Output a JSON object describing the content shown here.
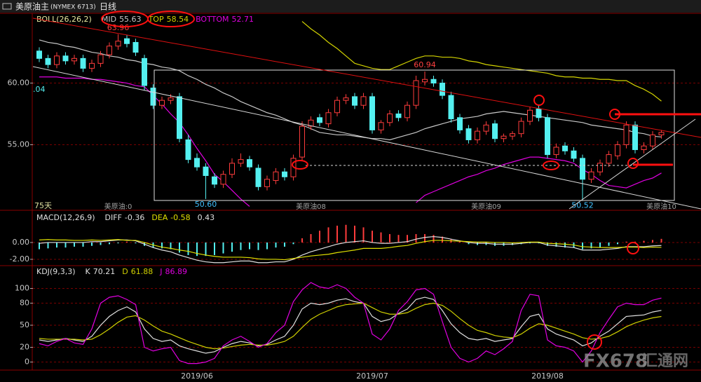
{
  "header": {
    "title": "美原油主",
    "code": "(NYMEX 6713)",
    "period": "日线"
  },
  "watermark": {
    "brand": "FX678",
    "site": "汇通网"
  },
  "chart_data": [
    {
      "type": "candlestick",
      "indicator": "BOLL(26,26,2)",
      "up_color": "#ff3c3c",
      "down_color": "#54f0f0",
      "open": [
        62.6,
        62.0,
        61.5,
        62.2,
        61.8,
        62.0,
        61.2,
        61.6,
        62.3,
        63.0,
        63.6,
        63.3,
        62.0,
        59.6,
        58.2,
        58.6,
        58.9,
        55.4,
        53.9,
        53.2,
        52.4,
        51.8,
        52.6,
        53.5,
        53.8,
        53.1,
        51.6,
        52.1,
        52.8,
        52.4,
        54.0,
        56.5,
        57.2,
        56.7,
        57.6,
        58.6,
        58.9,
        58.2,
        58.9,
        56.2,
        56.8,
        57.5,
        57.2,
        58.2,
        60.1,
        60.3,
        60.0,
        59.0,
        57.2,
        56.3,
        55.4,
        56.1,
        56.7,
        55.5,
        55.7,
        55.9,
        56.9,
        57.9,
        57.2,
        54.2,
        54.9,
        54.5,
        53.9,
        52.2,
        52.8,
        53.5,
        54.1,
        55.0,
        56.6,
        54.6,
        54.9,
        55.8
      ],
      "high": [
        62.9,
        62.3,
        62.5,
        62.5,
        62.3,
        62.3,
        61.9,
        62.6,
        63.3,
        63.96,
        63.9,
        63.6,
        62.3,
        59.9,
        58.9,
        59.1,
        59.2,
        55.8,
        54.3,
        53.5,
        52.7,
        52.9,
        53.9,
        54.3,
        54.1,
        53.4,
        52.5,
        53.1,
        53.1,
        54.2,
        56.9,
        57.3,
        57.5,
        57.9,
        58.9,
        59.1,
        59.2,
        59.2,
        59.2,
        57.0,
        57.8,
        57.8,
        58.5,
        60.6,
        60.94,
        60.6,
        60.3,
        59.3,
        57.5,
        56.6,
        56.4,
        56.9,
        57.0,
        55.9,
        56.1,
        57.2,
        58.1,
        58.2,
        57.5,
        55.1,
        55.2,
        54.8,
        54.2,
        53.1,
        53.8,
        54.5,
        55.3,
        56.9,
        56.9,
        55.2,
        56.1,
        56.2
      ],
      "low": [
        61.7,
        61.2,
        61.2,
        61.5,
        61.5,
        60.9,
        60.9,
        61.3,
        62.0,
        62.7,
        62.9,
        62.2,
        59.4,
        57.9,
        57.9,
        58.3,
        55.2,
        53.5,
        52.9,
        50.6,
        51.5,
        51.5,
        52.3,
        53.2,
        52.9,
        51.3,
        51.3,
        51.8,
        52.1,
        52.1,
        53.7,
        56.2,
        56.5,
        56.4,
        57.3,
        58.3,
        57.9,
        57.9,
        55.9,
        55.9,
        56.5,
        56.9,
        56.9,
        57.9,
        59.8,
        59.7,
        58.7,
        56.8,
        55.9,
        55.1,
        55.1,
        55.8,
        55.2,
        55.2,
        55.4,
        55.6,
        56.6,
        56.9,
        53.9,
        53.9,
        54.2,
        53.6,
        50.52,
        51.9,
        52.5,
        53.2,
        53.8,
        54.7,
        54.3,
        54.3,
        54.6,
        55.5
      ],
      "close": [
        62.0,
        61.5,
        62.2,
        61.8,
        62.0,
        61.2,
        61.6,
        62.3,
        63.0,
        63.4,
        63.2,
        62.5,
        59.8,
        58.2,
        58.6,
        58.8,
        55.5,
        53.8,
        53.2,
        52.5,
        51.8,
        52.6,
        53.5,
        53.8,
        53.2,
        51.6,
        52.2,
        52.8,
        52.4,
        53.9,
        56.5,
        57.0,
        56.8,
        57.6,
        58.6,
        58.8,
        58.2,
        58.9,
        56.2,
        56.8,
        57.5,
        57.2,
        58.2,
        60.2,
        60.3,
        60.0,
        59.0,
        57.1,
        56.2,
        55.4,
        56.1,
        56.6,
        55.5,
        55.7,
        55.9,
        56.9,
        57.8,
        57.2,
        54.2,
        54.8,
        54.5,
        53.9,
        52.2,
        52.8,
        53.5,
        54.2,
        55.0,
        56.6,
        54.6,
        54.9,
        55.8,
        56.0
      ],
      "series": [
        {
          "name": "MID",
          "color": "#c8c8c8",
          "values": [
            63.5,
            63.3,
            63.2,
            63.0,
            62.9,
            62.7,
            62.5,
            62.4,
            62.2,
            62.1,
            61.9,
            61.8,
            61.6,
            61.5,
            61.3,
            61.2,
            61.0,
            60.6,
            60.3,
            59.9,
            59.6,
            59.2,
            58.9,
            58.5,
            58.2,
            57.9,
            57.6,
            57.4,
            57.1,
            56.8,
            56.6,
            56.3,
            56.0,
            55.9,
            55.8,
            55.8,
            55.7,
            55.6,
            55.5,
            55.5,
            55.4,
            55.6,
            55.8,
            56.0,
            56.3,
            56.5,
            56.7,
            56.9,
            57.1,
            57.2,
            57.3,
            57.5,
            57.6,
            57.7,
            57.6,
            57.5,
            57.4,
            57.3,
            57.2,
            57.1,
            57.0,
            56.9,
            56.8,
            56.6,
            56.5,
            56.4,
            56.3,
            56.2,
            56.0,
            55.9,
            55.7,
            55.63
          ]
        },
        {
          "name": "TOP",
          "color": "#d2d200",
          "values": [
            null,
            null,
            null,
            null,
            null,
            null,
            null,
            null,
            null,
            null,
            null,
            null,
            null,
            null,
            null,
            null,
            null,
            null,
            null,
            null,
            null,
            null,
            null,
            null,
            null,
            null,
            null,
            null,
            null,
            null,
            65.0,
            64.4,
            63.9,
            63.3,
            62.8,
            62.2,
            61.6,
            61.4,
            61.2,
            61.1,
            61.1,
            61.4,
            61.7,
            62.0,
            62.2,
            62.2,
            62.1,
            62.1,
            62.0,
            61.8,
            61.7,
            61.5,
            61.4,
            61.3,
            61.2,
            61.1,
            61.0,
            60.9,
            60.8,
            60.6,
            60.5,
            60.5,
            60.4,
            60.4,
            60.3,
            60.3,
            60.2,
            60.2,
            59.8,
            59.5,
            59.1,
            58.54
          ]
        },
        {
          "name": "BOTTOM",
          "color": "#e000e0",
          "values": [
            60.5,
            60.5,
            60.5,
            60.4,
            60.4,
            60.4,
            60.3,
            60.3,
            60.2,
            60.1,
            60.0,
            59.8,
            59.7,
            59.0,
            58.3,
            57.5,
            56.8,
            55.8,
            54.7,
            53.7,
            52.6,
            52.0,
            51.3,
            50.6,
            50.0,
            null,
            null,
            null,
            null,
            null,
            null,
            null,
            null,
            null,
            null,
            null,
            null,
            null,
            null,
            null,
            null,
            null,
            null,
            50.3,
            50.9,
            51.2,
            51.5,
            51.8,
            52.1,
            52.4,
            52.6,
            52.9,
            53.1,
            53.4,
            53.6,
            53.8,
            54.0,
            54.0,
            53.9,
            53.8,
            53.7,
            53.5,
            53.0,
            52.6,
            52.1,
            51.7,
            51.6,
            51.5,
            51.8,
            52.1,
            52.3,
            52.71
          ]
        }
      ],
      "ylim": [
        49.8,
        65.6
      ],
      "yticks": [
        {
          "value": 55,
          "label": "55.00"
        },
        {
          "value": 60,
          "label": "60.00"
        }
      ],
      "grid": true,
      "annotations": [
        {
          "label": "63.96",
          "value": 63.96
        },
        {
          "label": "60.94",
          "value": 60.94
        },
        {
          "label": "50.60",
          "value": 50.6
        },
        {
          "label": "50.52",
          "value": 50.52
        }
      ],
      "period_labels": [
        null,
        null,
        null,
        null,
        null,
        null,
        null,
        null,
        null,
        "美原油:0",
        null,
        null,
        null,
        null,
        null,
        null,
        null,
        null,
        null,
        null,
        null,
        null,
        null,
        null,
        null,
        null,
        null,
        null,
        null,
        null,
        null,
        "美原油08",
        null,
        null,
        null,
        null,
        null,
        null,
        null,
        null,
        null,
        null,
        null,
        null,
        null,
        null,
        null,
        null,
        null,
        null,
        null,
        "美原油09",
        null,
        null,
        null,
        null,
        null,
        null,
        null,
        null,
        null,
        null,
        null,
        null,
        null,
        null,
        null,
        null,
        null,
        null,
        null,
        "美原油10"
      ],
      "corner_label": "75天",
      "edge_label": ".04"
    },
    {
      "type": "bar",
      "indicator": "MACD(12,26,9)",
      "up_color": "#ff3c3c",
      "down_color": "#54f0f0",
      "values": [
        -0.8,
        -0.7,
        -0.6,
        -0.6,
        -0.5,
        -0.5,
        -0.4,
        -0.3,
        -0.2,
        -0.1,
        0.1,
        -0.1,
        -0.4,
        -0.6,
        -0.7,
        -0.8,
        -1.2,
        -1.5,
        -1.6,
        -1.6,
        -1.5,
        -1.3,
        -1.1,
        -0.9,
        -0.8,
        -0.9,
        -0.8,
        -0.6,
        -0.5,
        -0.2,
        0.5,
        1.0,
        1.4,
        1.8,
        2.0,
        2.1,
        2.0,
        1.8,
        1.4,
        1.2,
        1.0,
        0.9,
        0.9,
        1.0,
        1.0,
        0.9,
        0.7,
        0.4,
        0.1,
        -0.2,
        -0.3,
        -0.3,
        -0.4,
        -0.4,
        -0.3,
        -0.2,
        -0.1,
        -0.1,
        -0.4,
        -0.5,
        -0.6,
        -0.6,
        -0.8,
        -0.7,
        -0.6,
        -0.4,
        -0.2,
        0.1,
        0.1,
        0.2,
        0.3,
        0.43
      ],
      "series": [
        {
          "name": "DIFF",
          "color": "#e0e0e0",
          "values": [
            -0.1,
            0.0,
            0.0,
            0.0,
            0.0,
            0.0,
            0.1,
            0.1,
            0.2,
            0.3,
            0.3,
            0.2,
            -0.2,
            -0.6,
            -0.9,
            -1.1,
            -1.5,
            -1.8,
            -2.1,
            -2.3,
            -2.4,
            -2.4,
            -2.3,
            -2.2,
            -2.2,
            -2.4,
            -2.4,
            -2.3,
            -2.3,
            -2.0,
            -1.5,
            -1.1,
            -0.8,
            -0.5,
            -0.2,
            0.0,
            0.1,
            0.2,
            0.0,
            -0.1,
            -0.1,
            0.0,
            0.1,
            0.4,
            0.6,
            0.7,
            0.6,
            0.4,
            0.2,
            0.0,
            -0.1,
            -0.1,
            -0.2,
            -0.2,
            -0.2,
            -0.1,
            0.0,
            0.0,
            -0.3,
            -0.4,
            -0.5,
            -0.6,
            -0.9,
            -0.9,
            -0.9,
            -0.8,
            -0.7,
            -0.5,
            -0.5,
            -0.5,
            -0.4,
            -0.36
          ]
        },
        {
          "name": "DEA",
          "color": "#e0e000",
          "values": [
            0.3,
            0.35,
            0.3,
            0.3,
            0.25,
            0.25,
            0.3,
            0.25,
            0.3,
            0.35,
            0.25,
            0.25,
            0.0,
            -0.3,
            -0.55,
            -0.7,
            -0.9,
            -1.05,
            -1.3,
            -1.5,
            -1.65,
            -1.75,
            -1.75,
            -1.75,
            -1.8,
            -1.95,
            -2.0,
            -2.0,
            -2.05,
            -1.9,
            -1.75,
            -1.6,
            -1.5,
            -1.4,
            -1.2,
            -1.05,
            -0.9,
            -0.7,
            -0.7,
            -0.7,
            -0.6,
            -0.45,
            -0.35,
            -0.1,
            0.1,
            0.25,
            0.25,
            0.2,
            0.15,
            0.1,
            0.05,
            0.05,
            0.0,
            0.0,
            -0.05,
            0.0,
            0.05,
            0.05,
            -0.1,
            -0.15,
            -0.2,
            -0.3,
            -0.5,
            -0.55,
            -0.6,
            -0.6,
            -0.6,
            -0.55,
            -0.55,
            -0.6,
            -0.55,
            -0.58
          ]
        }
      ],
      "ylim": [
        -2.67,
        3.58
      ],
      "yticks": [
        {
          "value": 0,
          "label": "0.00"
        },
        {
          "value": -2,
          "label": "-2.00"
        }
      ],
      "grid": true
    },
    {
      "type": "line",
      "indicator": "KDJ(9,3,3)",
      "categories": [
        null,
        null,
        null,
        null,
        null,
        null,
        null,
        null,
        null,
        null,
        null,
        null,
        null,
        null,
        null,
        null,
        null,
        null,
        "2019/06",
        null,
        null,
        null,
        null,
        null,
        null,
        null,
        null,
        null,
        null,
        null,
        null,
        null,
        null,
        null,
        null,
        null,
        null,
        null,
        "2019/07",
        null,
        null,
        null,
        null,
        null,
        null,
        null,
        null,
        null,
        null,
        null,
        null,
        null,
        null,
        null,
        null,
        null,
        null,
        null,
        "2019/08",
        null,
        null,
        null,
        null,
        null,
        null,
        null,
        null,
        null,
        null,
        null,
        null,
        null
      ],
      "series": [
        {
          "name": "K",
          "color": "#e0e0e0",
          "values": [
            30,
            28,
            30,
            32,
            30,
            28,
            35,
            50,
            62,
            70,
            75,
            68,
            45,
            32,
            28,
            30,
            22,
            18,
            15,
            12,
            14,
            20,
            25,
            28,
            26,
            22,
            24,
            30,
            35,
            50,
            72,
            80,
            78,
            80,
            84,
            86,
            82,
            80,
            62,
            55,
            58,
            66,
            72,
            85,
            88,
            85,
            70,
            52,
            40,
            32,
            30,
            32,
            28,
            30,
            32,
            48,
            62,
            65,
            45,
            38,
            34,
            30,
            22,
            26,
            35,
            42,
            52,
            62,
            63,
            64,
            68,
            70.21
          ]
        },
        {
          "name": "D",
          "color": "#d0d000",
          "values": [
            32,
            31,
            31,
            31,
            31,
            30,
            31,
            37,
            45,
            54,
            61,
            63,
            57,
            49,
            42,
            38,
            33,
            28,
            24,
            20,
            18,
            19,
            21,
            23,
            24,
            23,
            23,
            25,
            28,
            35,
            47,
            58,
            65,
            70,
            75,
            78,
            79,
            80,
            74,
            68,
            65,
            65,
            67,
            73,
            78,
            80,
            77,
            69,
            59,
            50,
            43,
            40,
            36,
            34,
            33,
            38,
            46,
            52,
            50,
            46,
            42,
            38,
            33,
            31,
            32,
            35,
            41,
            48,
            53,
            57,
            60,
            61.88
          ]
        },
        {
          "name": "J",
          "color": "#e000e0",
          "values": [
            25,
            22,
            28,
            32,
            26,
            24,
            45,
            80,
            88,
            90,
            85,
            78,
            20,
            15,
            18,
            20,
            2,
            -2,
            -2,
            0,
            5,
            22,
            30,
            35,
            28,
            20,
            25,
            40,
            50,
            82,
            98,
            108,
            102,
            100,
            105,
            100,
            88,
            80,
            38,
            30,
            45,
            70,
            82,
            98,
            100,
            92,
            55,
            20,
            5,
            0,
            5,
            15,
            10,
            18,
            28,
            70,
            92,
            90,
            30,
            22,
            20,
            15,
            0,
            15,
            40,
            58,
            75,
            80,
            78,
            78,
            84,
            86.89
          ]
        }
      ],
      "ylim": [
        -10,
        130
      ],
      "yticks": [
        0,
        20,
        50,
        80,
        100
      ],
      "grid": true
    }
  ]
}
